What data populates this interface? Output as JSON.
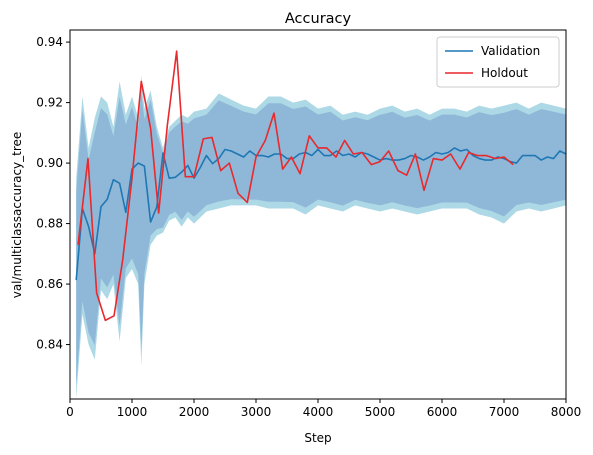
{
  "chart_data": {
    "type": "line",
    "title": "Accuracy",
    "xlabel": "Step",
    "ylabel": "val/multiclassaccuracy_tree",
    "xlim": [
      0,
      8000
    ],
    "ylim": [
      0.822,
      0.944
    ],
    "xticks": [
      0,
      1000,
      2000,
      3000,
      4000,
      5000,
      6000,
      7000,
      8000
    ],
    "xtick_labels": [
      "0",
      "1000",
      "2000",
      "3000",
      "4000",
      "5000",
      "6000",
      "7000",
      "8000"
    ],
    "yticks": [
      0.84,
      0.86,
      0.88,
      0.9,
      0.92,
      0.94
    ],
    "ytick_labels": [
      "0.84",
      "0.86",
      "0.88",
      "0.90",
      "0.92",
      "0.94"
    ],
    "grid": false,
    "legend_position": "top-right",
    "band": {
      "color_outer": "#add8e6",
      "color_inner": "#8fb8d8",
      "x": [
        100,
        200,
        300,
        400,
        500,
        600,
        700,
        800,
        900,
        1000,
        1100,
        1150,
        1200,
        1300,
        1400,
        1500,
        1600,
        1700,
        1800,
        1900,
        2000,
        2200,
        2400,
        2600,
        2800,
        3000,
        3200,
        3400,
        3600,
        3800,
        4000,
        4200,
        4400,
        4600,
        4800,
        5000,
        5200,
        5400,
        5600,
        5800,
        6000,
        6200,
        6400,
        6600,
        6800,
        7000,
        7200,
        7400,
        7600,
        7800,
        8000
      ],
      "upper": [
        0.895,
        0.922,
        0.905,
        0.915,
        0.922,
        0.92,
        0.912,
        0.927,
        0.916,
        0.922,
        0.915,
        0.929,
        0.918,
        0.924,
        0.912,
        0.905,
        0.912,
        0.914,
        0.916,
        0.915,
        0.917,
        0.918,
        0.923,
        0.921,
        0.919,
        0.918,
        0.922,
        0.922,
        0.92,
        0.921,
        0.918,
        0.919,
        0.916,
        0.917,
        0.916,
        0.918,
        0.919,
        0.917,
        0.918,
        0.916,
        0.918,
        0.918,
        0.917,
        0.919,
        0.918,
        0.919,
        0.92,
        0.918,
        0.92,
        0.919,
        0.918
      ],
      "lower": [
        0.822,
        0.85,
        0.84,
        0.835,
        0.858,
        0.855,
        0.86,
        0.841,
        0.862,
        0.865,
        0.86,
        0.833,
        0.86,
        0.873,
        0.876,
        0.877,
        0.881,
        0.882,
        0.879,
        0.882,
        0.88,
        0.884,
        0.885,
        0.886,
        0.886,
        0.886,
        0.885,
        0.885,
        0.885,
        0.883,
        0.886,
        0.885,
        0.884,
        0.886,
        0.885,
        0.884,
        0.885,
        0.884,
        0.883,
        0.884,
        0.885,
        0.885,
        0.885,
        0.883,
        0.882,
        0.88,
        0.884,
        0.885,
        0.884,
        0.885,
        0.886
      ]
    },
    "series": [
      {
        "name": "Validation",
        "color": "#1f77b4",
        "x": [
          100,
          200,
          300,
          400,
          500,
          600,
          700,
          800,
          900,
          1000,
          1100,
          1200,
          1300,
          1400,
          1500,
          1600,
          1700,
          1800,
          1900,
          2000,
          2100,
          2200,
          2300,
          2400,
          2500,
          2600,
          2700,
          2800,
          2900,
          3000,
          3100,
          3200,
          3300,
          3400,
          3500,
          3600,
          3700,
          3800,
          3900,
          4000,
          4100,
          4200,
          4300,
          4400,
          4500,
          4600,
          4700,
          4800,
          4900,
          5000,
          5100,
          5200,
          5300,
          5400,
          5500,
          5600,
          5700,
          5800,
          5900,
          6000,
          6100,
          6200,
          6300,
          6400,
          6500,
          6600,
          6700,
          6800,
          6900,
          7000,
          7100,
          7200,
          7300,
          7400,
          7500,
          7600,
          7700,
          7800,
          7900,
          8000
        ],
        "values": [
          0.8613,
          0.885,
          0.879,
          0.87,
          0.8856,
          0.888,
          0.8945,
          0.8933,
          0.8837,
          0.898,
          0.9,
          0.899,
          0.8805,
          0.8855,
          0.9033,
          0.895,
          0.8953,
          0.897,
          0.8992,
          0.895,
          0.8985,
          0.9025,
          0.8998,
          0.9015,
          0.9045,
          0.904,
          0.903,
          0.902,
          0.904,
          0.9025,
          0.9025,
          0.902,
          0.903,
          0.903,
          0.9015,
          0.9015,
          0.903,
          0.9035,
          0.9025,
          0.9045,
          0.9025,
          0.9025,
          0.904,
          0.9025,
          0.903,
          0.902,
          0.9035,
          0.903,
          0.902,
          0.901,
          0.9015,
          0.901,
          0.901,
          0.9015,
          0.9025,
          0.902,
          0.901,
          0.902,
          0.9035,
          0.903,
          0.9035,
          0.905,
          0.904,
          0.9045,
          0.9025,
          0.9015,
          0.901,
          0.901,
          0.902,
          0.9015,
          0.9005,
          0.9,
          0.9025,
          0.9025,
          0.9025,
          0.901,
          0.902,
          0.9015,
          0.904,
          0.903
        ]
      },
      {
        "name": "Holdout",
        "color": "#e8292d",
        "x": [
          130,
          290,
          430,
          570,
          710,
          850,
          1000,
          1150,
          1300,
          1430,
          1570,
          1720,
          1860,
          2000,
          2150,
          2290,
          2430,
          2570,
          2710,
          2860,
          3000,
          3150,
          3290,
          3430,
          3570,
          3710,
          3860,
          4000,
          4140,
          4290,
          4430,
          4570,
          4710,
          4860,
          5000,
          5140,
          5290,
          5430,
          5570,
          5710,
          5860,
          6000,
          6140,
          6290,
          6430,
          6570,
          6710,
          6860,
          7000,
          7150
        ],
        "values": [
          0.873,
          0.9015,
          0.857,
          0.848,
          0.8495,
          0.868,
          0.895,
          0.927,
          0.9115,
          0.8835,
          0.9125,
          0.937,
          0.8955,
          0.8955,
          0.908,
          0.9085,
          0.8975,
          0.9,
          0.89,
          0.887,
          0.902,
          0.9075,
          0.9165,
          0.898,
          0.902,
          0.8965,
          0.909,
          0.905,
          0.905,
          0.902,
          0.9075,
          0.903,
          0.9035,
          0.8995,
          0.9005,
          0.904,
          0.8975,
          0.896,
          0.903,
          0.891,
          0.9015,
          0.901,
          0.903,
          0.898,
          0.9035,
          0.9025,
          0.9025,
          0.9015,
          0.902,
          0.8995
        ]
      }
    ]
  }
}
